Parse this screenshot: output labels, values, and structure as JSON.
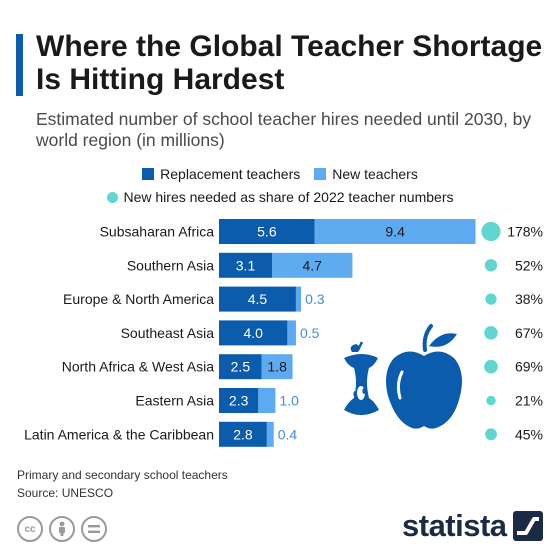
{
  "header": {
    "title": "Where the Global Teacher Shortage Is Hitting Hardest",
    "subtitle": "Estimated number of school teacher hires needed until 2030, by world region (in millions)"
  },
  "legend": {
    "replacement": "Replacement teachers",
    "new": "New teachers",
    "share": "New hires needed as share of 2022 teacher numbers"
  },
  "colors": {
    "replacement": "#0b5cad",
    "new": "#5eaaf0",
    "share": "#5fd6cf"
  },
  "chart_data": {
    "type": "bar",
    "orientation": "horizontal",
    "stacked": true,
    "categories": [
      "Subsaharan Africa",
      "Southern Asia",
      "Europe & North America",
      "Southeast Asia",
      "North Africa & West Asia",
      "Eastern Asia",
      "Latin America & the Caribbean"
    ],
    "series": [
      {
        "name": "Replacement teachers",
        "values": [
          5.6,
          3.1,
          4.5,
          4.0,
          2.5,
          2.3,
          2.8
        ]
      },
      {
        "name": "New teachers",
        "values": [
          9.4,
          4.7,
          0.3,
          0.5,
          1.8,
          1.0,
          0.4
        ]
      }
    ],
    "value_labels": {
      "replacement": [
        "5.6",
        "3.1",
        "4.5",
        "4.0",
        "2.5",
        "2.3",
        "2.8"
      ],
      "new": [
        "9.4",
        "4.7",
        "0.3",
        "0.5",
        "1.8",
        "1.0",
        "0.4"
      ]
    },
    "share": {
      "name": "New hires needed as share of 2022 teacher numbers",
      "values": [
        178,
        52,
        38,
        67,
        69,
        21,
        45
      ],
      "labels": [
        "178%",
        "52%",
        "38%",
        "67%",
        "69%",
        "21%",
        "45%"
      ]
    },
    "legend_position": "top",
    "grid": false
  },
  "footer": {
    "note": "Primary and secondary school teachers",
    "source": "Source: UNESCO",
    "cc_icons": [
      "cc-icon",
      "by-icon",
      "nd-icon"
    ],
    "brand": "statista"
  }
}
